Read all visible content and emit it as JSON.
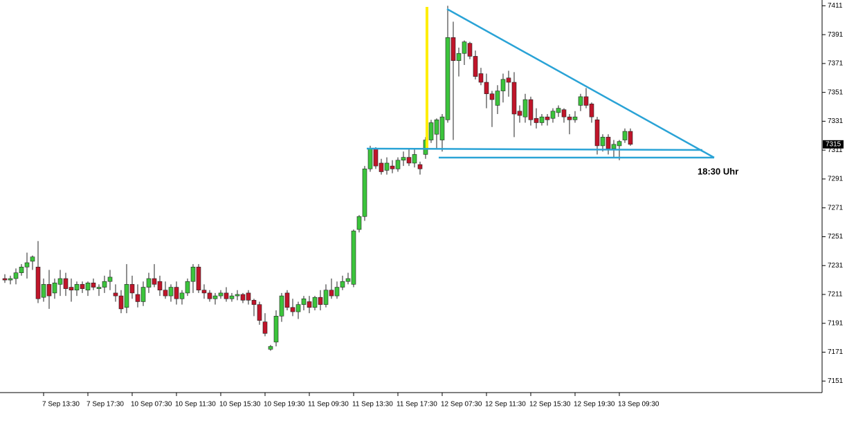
{
  "chart_data": {
    "type": "candlestick",
    "annotation": "18:30 Uhr",
    "current_price": 7315,
    "up_color": "#3cc43c",
    "down_color": "#c0152a",
    "categories": [
      null,
      null,
      null,
      null,
      null,
      null,
      null,
      "7 Sep 13:30",
      null,
      null,
      null,
      null,
      null,
      null,
      null,
      "7 Sep 17:30",
      null,
      null,
      null,
      null,
      null,
      null,
      null,
      "10 Sep 07:30",
      null,
      null,
      null,
      null,
      null,
      null,
      null,
      "10 Sep 11:30",
      null,
      null,
      null,
      null,
      null,
      null,
      null,
      "10 Sep 15:30",
      null,
      null,
      null,
      null,
      null,
      null,
      null,
      "10 Sep 19:30",
      null,
      null,
      null,
      null,
      null,
      null,
      null,
      "11 Sep 09:30",
      null,
      null,
      null,
      null,
      null,
      null,
      null,
      "11 Sep 13:30",
      null,
      null,
      null,
      null,
      null,
      null,
      null,
      "11 Sep 17:30",
      null,
      null,
      null,
      null,
      null,
      null,
      null,
      "12 Sep 07:30",
      null,
      null,
      null,
      null,
      null,
      null,
      null,
      "12 Sep 11:30",
      null,
      null,
      null,
      null,
      null,
      null,
      null,
      "12 Sep 15:30",
      null,
      null,
      null,
      null,
      null,
      null,
      null,
      "12 Sep 19:30",
      null,
      null,
      null,
      null,
      null,
      null,
      null,
      "13 Sep 09:30",
      null,
      null
    ],
    "open": [
      7222,
      7221,
      7222,
      7226,
      7230,
      7234,
      7230,
      7209,
      7218,
      7212,
      7218,
      7222,
      7216,
      7214,
      7218,
      7214,
      7219,
      7215,
      7216,
      7220,
      7212,
      7210,
      7202,
      7218,
      7211,
      7206,
      7216,
      7222,
      7220,
      7214,
      7210,
      7216,
      7208,
      7212,
      7220,
      7230,
      7214,
      7212,
      7208,
      7210,
      7212,
      7208,
      7210,
      7211,
      7212,
      7207,
      7204,
      7192,
      7173,
      7178,
      7196,
      7212,
      7202,
      7199,
      7204,
      7206,
      7202,
      7209,
      7204,
      7214,
      7210,
      7216,
      7220,
      7218,
      7256,
      7265,
      7298,
      7312,
      7302,
      7297,
      7300,
      7298,
      7304,
      7306,
      7302,
      7301,
      7308,
      7318,
      7322,
      7318,
      7332,
      7389,
      7373,
      7378,
      7385,
      7376,
      7364,
      7358,
      7350,
      7342,
      7352,
      7361,
      7358,
      7338,
      7334,
      7346,
      7333,
      7330,
      7334,
      7333,
      7337,
      7339,
      7334,
      7332,
      7342,
      7348,
      7343,
      7332,
      7314,
      7320,
      7312,
      7314,
      7318,
      7324
    ],
    "high": [
      7225,
      7224,
      7229,
      7232,
      7240,
      7238,
      7248,
      7222,
      7228,
      7222,
      7228,
      7226,
      7222,
      7220,
      7220,
      7220,
      7222,
      7218,
      7224,
      7228,
      7218,
      7214,
      7232,
      7224,
      7218,
      7220,
      7226,
      7232,
      7224,
      7220,
      7218,
      7220,
      7214,
      7222,
      7232,
      7232,
      7218,
      7214,
      7212,
      7214,
      7216,
      7212,
      7214,
      7212,
      7214,
      7208,
      7206,
      7198,
      7176,
      7200,
      7212,
      7214,
      7208,
      7206,
      7210,
      7210,
      7210,
      7214,
      7218,
      7222,
      7220,
      7224,
      7226,
      7256,
      7266,
      7300,
      7314,
      7313,
      7305,
      7306,
      7304,
      7306,
      7310,
      7312,
      7312,
      7303,
      7320,
      7332,
      7333,
      7336,
      7411,
      7400,
      7382,
      7387,
      7386,
      7380,
      7368,
      7364,
      7352,
      7356,
      7364,
      7366,
      7365,
      7342,
      7350,
      7348,
      7340,
      7336,
      7336,
      7340,
      7342,
      7340,
      7336,
      7338,
      7350,
      7354,
      7344,
      7334,
      7322,
      7322,
      7318,
      7318,
      7326,
      7326
    ],
    "low": [
      7219,
      7218,
      7218,
      7224,
      7222,
      7228,
      7205,
      7206,
      7201,
      7208,
      7210,
      7210,
      7206,
      7210,
      7212,
      7210,
      7214,
      7210,
      7212,
      7214,
      7206,
      7198,
      7198,
      7208,
      7202,
      7203,
      7212,
      7216,
      7210,
      7208,
      7206,
      7204,
      7204,
      7210,
      7212,
      7212,
      7208,
      7206,
      7204,
      7208,
      7206,
      7206,
      7207,
      7205,
      7204,
      7196,
      7190,
      7182,
      7172,
      7175,
      7192,
      7200,
      7196,
      7194,
      7200,
      7198,
      7200,
      7200,
      7202,
      7208,
      7208,
      7214,
      7218,
      7216,
      7254,
      7262,
      7296,
      7298,
      7294,
      7294,
      7295,
      7296,
      7300,
      7300,
      7299,
      7294,
      7305,
      7316,
      7312,
      7310,
      7330,
      7318,
      7362,
      7370,
      7374,
      7360,
      7356,
      7340,
      7327,
      7336,
      7344,
      7348,
      7320,
      7330,
      7330,
      7328,
      7326,
      7328,
      7328,
      7330,
      7334,
      7330,
      7322,
      7330,
      7338,
      7340,
      7330,
      7308,
      7310,
      7308,
      7306,
      7304,
      7316,
      7314
    ],
    "close": [
      7221,
      7222,
      7226,
      7230,
      7233,
      7237,
      7208,
      7218,
      7210,
      7219,
      7222,
      7215,
      7214,
      7218,
      7215,
      7219,
      7216,
      7216,
      7220,
      7223,
      7210,
      7201,
      7218,
      7212,
      7206,
      7216,
      7222,
      7218,
      7214,
      7210,
      7216,
      7208,
      7212,
      7220,
      7230,
      7214,
      7212,
      7208,
      7210,
      7212,
      7208,
      7210,
      7211,
      7207,
      7207,
      7204,
      7193,
      7184,
      7175,
      7196,
      7210,
      7202,
      7199,
      7204,
      7208,
      7202,
      7209,
      7204,
      7214,
      7210,
      7216,
      7220,
      7222,
      7255,
      7265,
      7298,
      7312,
      7300,
      7296,
      7302,
      7298,
      7304,
      7306,
      7302,
      7308,
      7298,
      7318,
      7330,
      7332,
      7334,
      7389,
      7373,
      7378,
      7386,
      7376,
      7362,
      7358,
      7350,
      7346,
      7352,
      7360,
      7358,
      7336,
      7335,
      7346,
      7332,
      7330,
      7334,
      7332,
      7338,
      7340,
      7334,
      7332,
      7334,
      7348,
      7342,
      7334,
      7314,
      7320,
      7312,
      7315,
      7317,
      7324,
      7315
    ],
    "ylim": [
      7143,
      7415
    ],
    "yticks": [
      7151,
      7171,
      7191,
      7211,
      7231,
      7251,
      7271,
      7291,
      7311,
      7331,
      7351,
      7371,
      7391,
      7411
    ]
  }
}
